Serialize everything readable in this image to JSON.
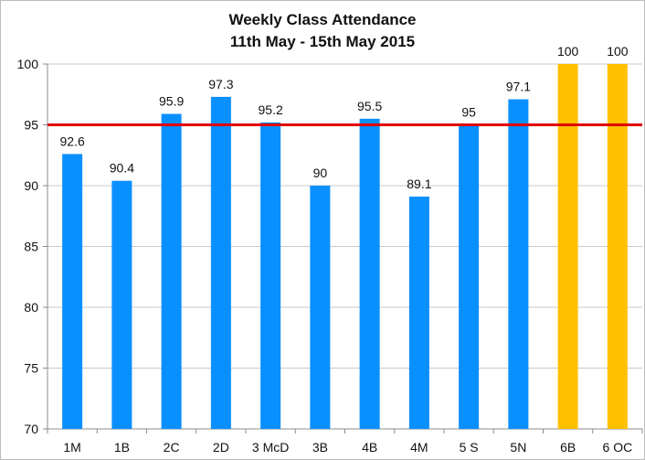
{
  "chart_data": {
    "type": "bar",
    "title": "Weekly Class Attendance",
    "subtitle": "11th May - 15th May 2015",
    "categories": [
      "1M",
      "1B",
      "2C",
      "2D",
      "3 McD",
      "3B",
      "4B",
      "4M",
      "5 S",
      "5N",
      "6B",
      "6 OC"
    ],
    "values": [
      92.6,
      90.4,
      95.9,
      97.3,
      95.2,
      90,
      95.5,
      89.1,
      95,
      97.1,
      100,
      100
    ],
    "value_labels": [
      "92.6",
      "90.4",
      "95.9",
      "97.3",
      "95.2",
      "90",
      "95.5",
      "89.1",
      "95",
      "97.1",
      "100",
      "100"
    ],
    "bar_colors": [
      "#0a8fff",
      "#0a8fff",
      "#0a8fff",
      "#0a8fff",
      "#0a8fff",
      "#0a8fff",
      "#0a8fff",
      "#0a8fff",
      "#0a8fff",
      "#0a8fff",
      "#ffc000",
      "#ffc000"
    ],
    "ylim": [
      70,
      100
    ],
    "yticks": [
      70,
      75,
      80,
      85,
      90,
      95,
      100
    ],
    "grid": true,
    "reference_line": {
      "value": 95,
      "color": "#e00000"
    },
    "xlabel": "",
    "ylabel": ""
  }
}
